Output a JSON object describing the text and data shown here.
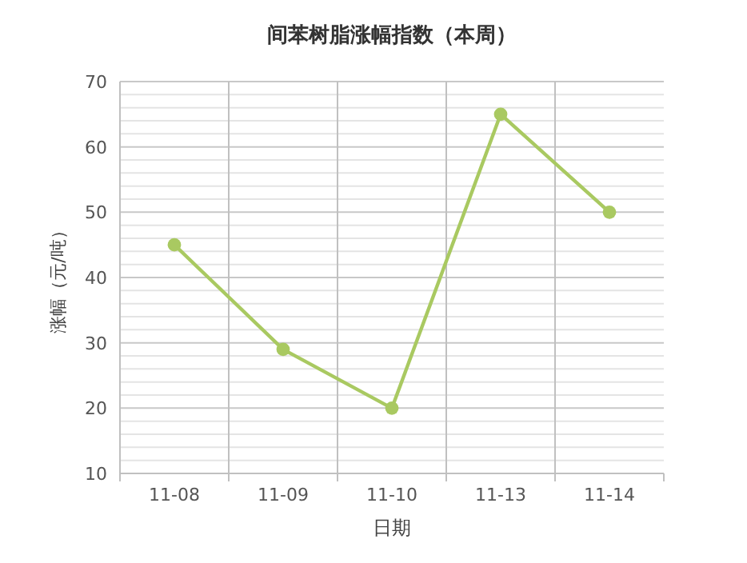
{
  "chart_data": {
    "type": "line",
    "title": "间苯树脂涨幅指数（本周）",
    "xlabel": "日期",
    "ylabel": "涨幅（元/吨）",
    "categories": [
      "11-08",
      "11-09",
      "11-10",
      "11-13",
      "11-14"
    ],
    "series": [
      {
        "color": "#a9c961",
        "values": [
          45,
          29,
          20,
          65,
          50
        ]
      }
    ],
    "ylim": [
      10,
      70
    ],
    "yticks": [
      10,
      20,
      30,
      40,
      50,
      60,
      70
    ],
    "grid": true,
    "marker": "circle",
    "line_style": "solid"
  }
}
